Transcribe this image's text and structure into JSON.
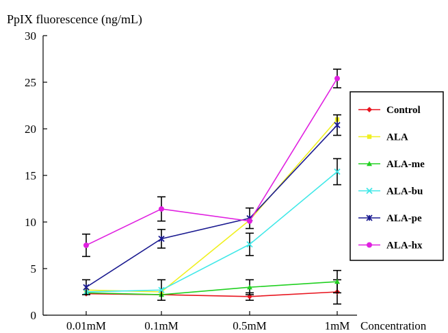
{
  "chart_data": {
    "type": "line",
    "ylabel": "PpIX fluorescence (ng/mL)",
    "xlabel": "Concentration",
    "categories": [
      "0.01mM",
      "0.1mM",
      "0.5mM",
      "1mM"
    ],
    "ylim": [
      0,
      30
    ],
    "yticks": [
      0,
      5,
      10,
      15,
      20,
      25,
      30
    ],
    "legend_position": "right",
    "series": [
      {
        "name": "Control",
        "color": "#e8141e",
        "marker": "diamond",
        "values": [
          2.3,
          2.2,
          2.0,
          2.5
        ],
        "errors": [
          0,
          0,
          0.4,
          1.3
        ]
      },
      {
        "name": "ALA",
        "color": "#f0f020",
        "marker": "square",
        "values": [
          2.7,
          2.5,
          10.2,
          21.0
        ],
        "errors": [
          0,
          0,
          0,
          0
        ]
      },
      {
        "name": "ALA-me",
        "color": "#20d020",
        "marker": "triangle",
        "values": [
          2.4,
          2.2,
          3.0,
          3.6
        ],
        "errors": [
          0,
          0,
          0.8,
          1.2
        ]
      },
      {
        "name": "ALA-bu",
        "color": "#40e8e8",
        "marker": "x",
        "values": [
          2.5,
          2.7,
          7.6,
          15.4
        ],
        "errors": [
          0,
          1.1,
          1.2,
          1.4
        ]
      },
      {
        "name": "ALA-pe",
        "color": "#1a1a90",
        "marker": "star",
        "values": [
          3.0,
          8.2,
          10.4,
          20.4
        ],
        "errors": [
          0.8,
          1.0,
          1.1,
          1.1
        ]
      },
      {
        "name": "ALA-hx",
        "color": "#e020e0",
        "marker": "circle",
        "values": [
          7.5,
          11.4,
          10.1,
          25.4
        ],
        "errors": [
          1.2,
          1.3,
          0,
          1.0
        ]
      }
    ]
  }
}
